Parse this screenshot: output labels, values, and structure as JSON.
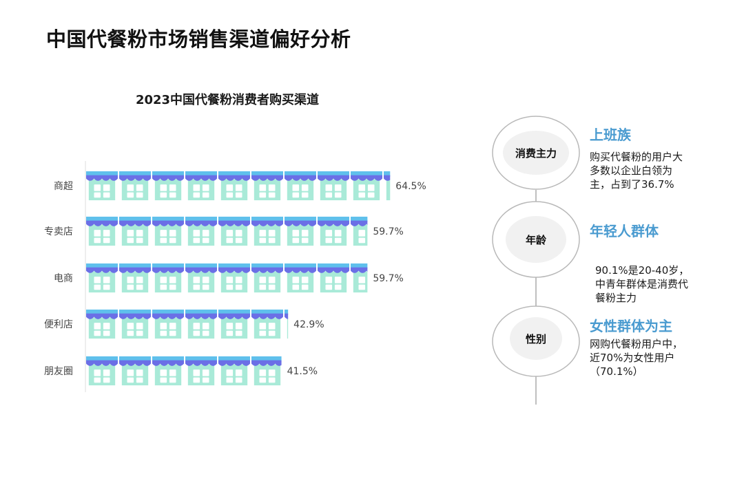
{
  "page_title": "中国代餐粉市场销售渠道偏好分析",
  "chart_data": {
    "type": "bar",
    "title": "2023中国代餐粉消费者购买渠道",
    "categories": [
      "商超",
      "专卖店",
      "电商",
      "便利店",
      "朋友圈"
    ],
    "values": [
      64.5,
      59.7,
      59.7,
      42.9,
      41.5
    ],
    "value_labels": [
      "64.5%",
      "59.7%",
      "59.7%",
      "42.9%",
      "41.5%"
    ],
    "xlim": [
      0,
      70
    ],
    "grid": false,
    "legend": "none",
    "marker": "store-icon",
    "colors": {
      "awning": "#6b6fe6",
      "awning_light": "#5fc0ec",
      "building": "#a9ead8",
      "window": "#ffffff"
    }
  },
  "insights": [
    {
      "node": "消费主力",
      "heading": "上班族",
      "lines": [
        "购买代餐粉的用户大",
        "多数以企业白领为",
        "主，占到了36.7%"
      ]
    },
    {
      "node": "年龄",
      "heading": "年轻人群体",
      "lines": [
        "90.1%是20-40岁，",
        "中青年群体是消费代",
        "餐粉主力"
      ]
    },
    {
      "node": "性别",
      "heading": "女性群体为主",
      "lines": [
        "网购代餐粉用户中，",
        "近70%为女性用户",
        "（70.1%）"
      ]
    }
  ],
  "colors": {
    "heading": "#4a9bd0",
    "node_fill": "#f1f1f1",
    "node_ring": "#bdbdbd"
  }
}
